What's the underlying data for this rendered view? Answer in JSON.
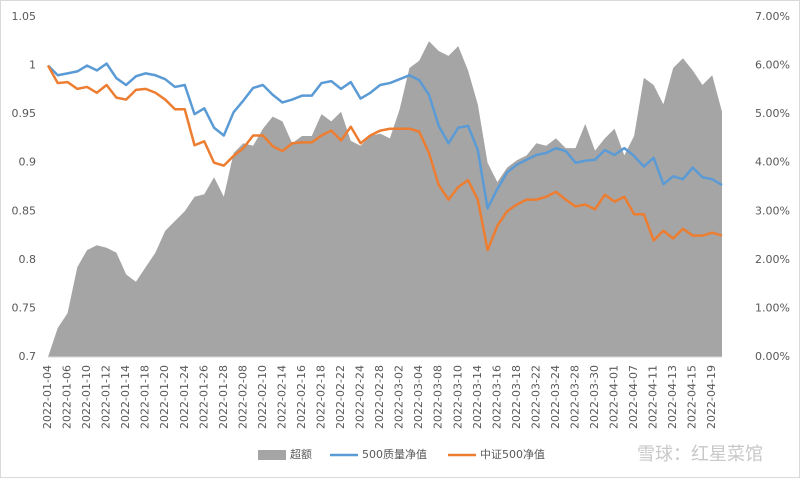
{
  "chart_data": {
    "type": "combo",
    "categories": [
      "2022-01-04",
      null,
      "2022-01-06",
      null,
      "2022-01-10",
      null,
      "2022-01-12",
      null,
      "2022-01-14",
      null,
      "2022-01-18",
      null,
      "2022-01-20",
      null,
      "2022-01-24",
      null,
      "2022-01-26",
      null,
      "2022-01-28",
      null,
      "2022-02-08",
      null,
      "2022-02-10",
      null,
      "2022-02-14",
      null,
      "2022-02-16",
      null,
      "2022-02-18",
      null,
      "2022-02-22",
      null,
      "2022-02-24",
      null,
      "2022-02-28",
      null,
      "2022-03-02",
      null,
      "2022-03-04",
      null,
      "2022-03-08",
      null,
      "2022-03-10",
      null,
      "2022-03-14",
      null,
      "2022-03-16",
      null,
      "2022-03-18",
      null,
      "2022-03-22",
      null,
      "2022-03-24",
      null,
      "2022-03-28",
      null,
      "2022-03-30",
      null,
      "2022-04-01",
      null,
      "2022-04-07",
      null,
      "2022-04-11",
      null,
      "2022-04-13",
      null,
      "2022-04-15",
      null,
      "2022-04-19",
      null
    ],
    "series": [
      {
        "name": "超额",
        "type": "area",
        "axis": "y2",
        "color": "#a5a5a5",
        "values": [
          0,
          0.6,
          0.9,
          1.85,
          2.2,
          2.3,
          2.25,
          2.15,
          1.7,
          1.55,
          1.85,
          2.15,
          2.6,
          2.8,
          3.0,
          3.3,
          3.35,
          3.7,
          3.3,
          4.2,
          4.4,
          4.35,
          4.7,
          4.95,
          4.85,
          4.4,
          4.55,
          4.55,
          5.0,
          4.85,
          5.05,
          4.45,
          4.35,
          4.55,
          4.6,
          4.5,
          5.1,
          5.95,
          6.1,
          6.5,
          6.3,
          6.2,
          6.4,
          5.9,
          5.2,
          4.0,
          3.6,
          3.9,
          4.05,
          4.15,
          4.4,
          4.35,
          4.5,
          4.3,
          4.3,
          4.8,
          4.25,
          4.5,
          4.7,
          4.15,
          4.55,
          5.75,
          5.6,
          5.2,
          5.95,
          6.15,
          5.9,
          5.6,
          5.8,
          5.05
        ]
      },
      {
        "name": "500质量净值",
        "type": "line",
        "color": "#5b9bd5",
        "values": [
          1.0,
          0.99,
          0.992,
          0.994,
          1.0,
          0.995,
          1.002,
          0.987,
          0.98,
          0.989,
          0.992,
          0.99,
          0.986,
          0.978,
          0.98,
          0.95,
          0.956,
          0.936,
          0.928,
          0.952,
          0.964,
          0.977,
          0.98,
          0.97,
          0.962,
          0.965,
          0.969,
          0.969,
          0.982,
          0.984,
          0.976,
          0.983,
          0.966,
          0.972,
          0.98,
          0.982,
          0.986,
          0.99,
          0.985,
          0.97,
          0.938,
          0.92,
          0.936,
          0.938,
          0.913,
          0.853,
          0.873,
          0.89,
          0.898,
          0.903,
          0.908,
          0.91,
          0.915,
          0.912,
          0.9,
          0.902,
          0.903,
          0.913,
          0.908,
          0.915,
          0.907,
          0.896,
          0.905,
          0.878,
          0.886,
          0.883,
          0.895,
          0.885,
          0.883,
          0.877
        ]
      },
      {
        "name": "中证500净值",
        "type": "line",
        "color": "#ed7d31",
        "values": [
          1.0,
          0.982,
          0.983,
          0.976,
          0.978,
          0.972,
          0.98,
          0.967,
          0.965,
          0.975,
          0.976,
          0.972,
          0.965,
          0.955,
          0.955,
          0.918,
          0.922,
          0.9,
          0.897,
          0.907,
          0.915,
          0.928,
          0.928,
          0.917,
          0.912,
          0.92,
          0.921,
          0.921,
          0.928,
          0.933,
          0.923,
          0.937,
          0.92,
          0.928,
          0.933,
          0.935,
          0.935,
          0.935,
          0.932,
          0.91,
          0.877,
          0.862,
          0.875,
          0.882,
          0.862,
          0.81,
          0.835,
          0.85,
          0.857,
          0.862,
          0.862,
          0.865,
          0.87,
          0.862,
          0.855,
          0.857,
          0.852,
          0.867,
          0.86,
          0.865,
          0.847,
          0.847,
          0.82,
          0.83,
          0.822,
          0.832,
          0.825,
          0.825,
          0.828,
          0.825
        ]
      }
    ],
    "ylim": [
      0.7,
      1.05
    ],
    "yticks": [
      0.7,
      0.75,
      0.8,
      0.85,
      0.9,
      0.95,
      1,
      1.05
    ],
    "y2lim": [
      0,
      7
    ],
    "y2ticks": [
      {
        "value": 0,
        "label": "0.00%"
      },
      {
        "value": 1,
        "label": "1.00%"
      },
      {
        "value": 2,
        "label": "2.00%"
      },
      {
        "value": 3,
        "label": "3.00%"
      },
      {
        "value": 4,
        "label": "4.00%"
      },
      {
        "value": 5,
        "label": "5.00%"
      },
      {
        "value": 6,
        "label": "6.00%"
      },
      {
        "value": 7,
        "label": "7.00%"
      }
    ],
    "grid": false,
    "legend": "bottom",
    "watermark": "雪球：红星菜馆"
  }
}
